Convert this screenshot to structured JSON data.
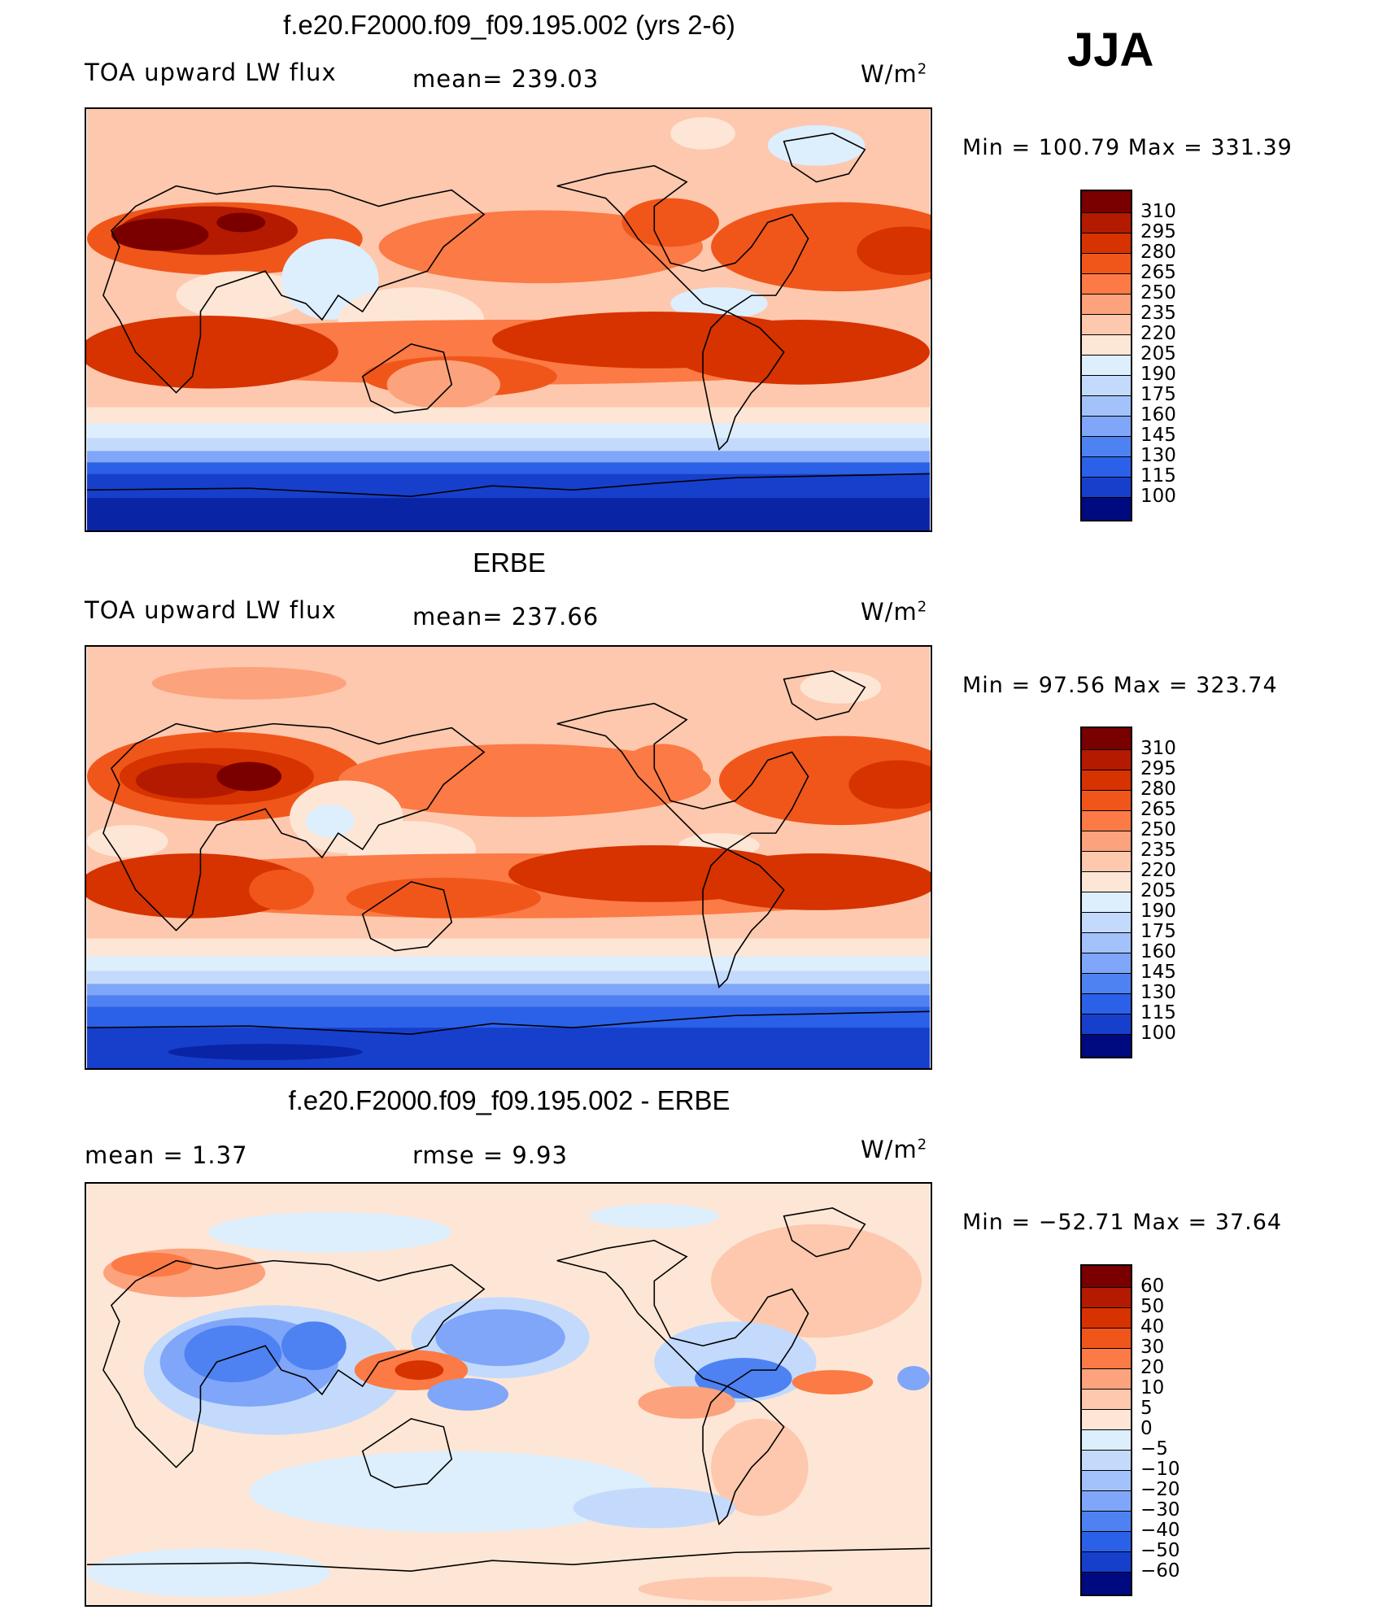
{
  "season": "JJA",
  "colors": {
    "warm": [
      "#7a0000",
      "#b31a00",
      "#d63300",
      "#f0561a",
      "#fb7a45",
      "#fca27c",
      "#fdc8ad",
      "#fde6d6"
    ],
    "cool": [
      "#ddeefc",
      "#c3dafc",
      "#a3c2fb",
      "#7fa6f8",
      "#4e82f2",
      "#2a61e8",
      "#163fcc",
      "#0a24a6",
      "#000a80"
    ],
    "land": "#000000"
  },
  "panels": [
    {
      "title": "f.e20.F2000.f09_f09.195.002 (yrs 2-6)",
      "left_label": "TOA upward LW flux",
      "center_label": "mean= 239.03",
      "units_base": "W/m",
      "units_exp": "2",
      "minmax": "Min = 100.79 Max = 331.39",
      "levels": [
        "310",
        "295",
        "280",
        "265",
        "250",
        "235",
        "220",
        "205",
        "190",
        "175",
        "160",
        "145",
        "130",
        "115",
        "100"
      ]
    },
    {
      "title": "ERBE",
      "left_label": "TOA upward LW flux",
      "center_label": "mean= 237.66",
      "units_base": "W/m",
      "units_exp": "2",
      "minmax": "Min = 97.56 Max = 323.74",
      "levels": [
        "310",
        "295",
        "280",
        "265",
        "250",
        "235",
        "220",
        "205",
        "190",
        "175",
        "160",
        "145",
        "130",
        "115",
        "100"
      ]
    },
    {
      "title": "f.e20.F2000.f09_f09.195.002 - ERBE",
      "left_label": "mean = 1.37",
      "center_label": "rmse = 9.93",
      "units_base": "W/m",
      "units_exp": "2",
      "minmax": "Min = −52.71 Max = 37.64",
      "levels": [
        "60",
        "50",
        "40",
        "30",
        "20",
        "10",
        "5",
        "0",
        "−5",
        "−10",
        "−20",
        "−30",
        "−40",
        "−50",
        "−60"
      ]
    }
  ]
}
